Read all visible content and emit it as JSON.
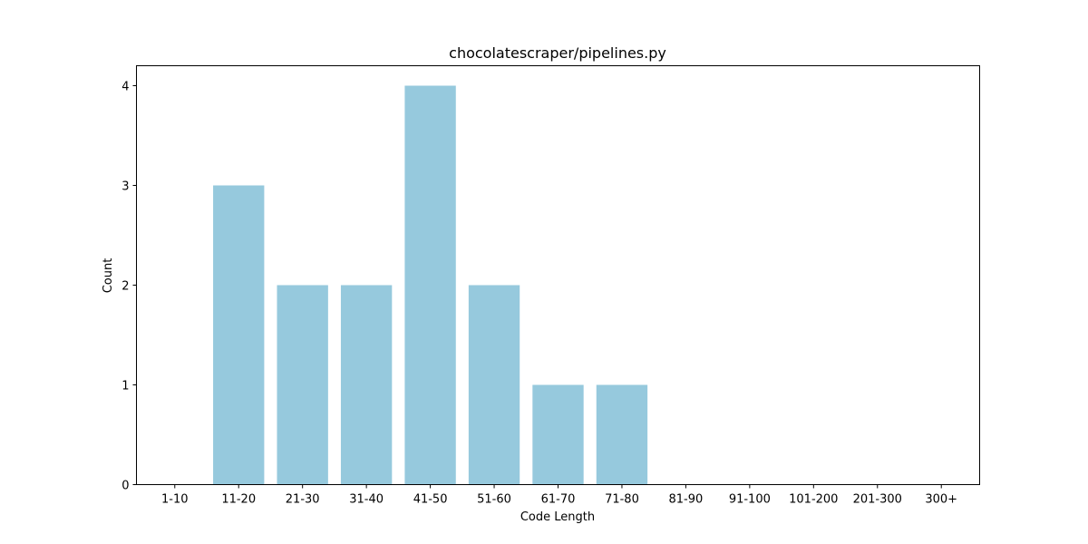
{
  "chart_data": {
    "type": "bar",
    "title": "chocolatescraper/pipelines.py",
    "xlabel": "Code Length",
    "ylabel": "Count",
    "categories": [
      "1-10",
      "11-20",
      "21-30",
      "31-40",
      "41-50",
      "51-60",
      "61-70",
      "71-80",
      "81-90",
      "91-100",
      "101-200",
      "201-300",
      "300+"
    ],
    "values": [
      0,
      3,
      2,
      2,
      4,
      2,
      1,
      1,
      0,
      0,
      0,
      0,
      0
    ],
    "ylim": [
      0,
      4.2
    ],
    "yticks": [
      "0",
      "1",
      "2",
      "3",
      "4"
    ],
    "bar_color": "#96c9dd",
    "grid": false,
    "legend": "none"
  }
}
